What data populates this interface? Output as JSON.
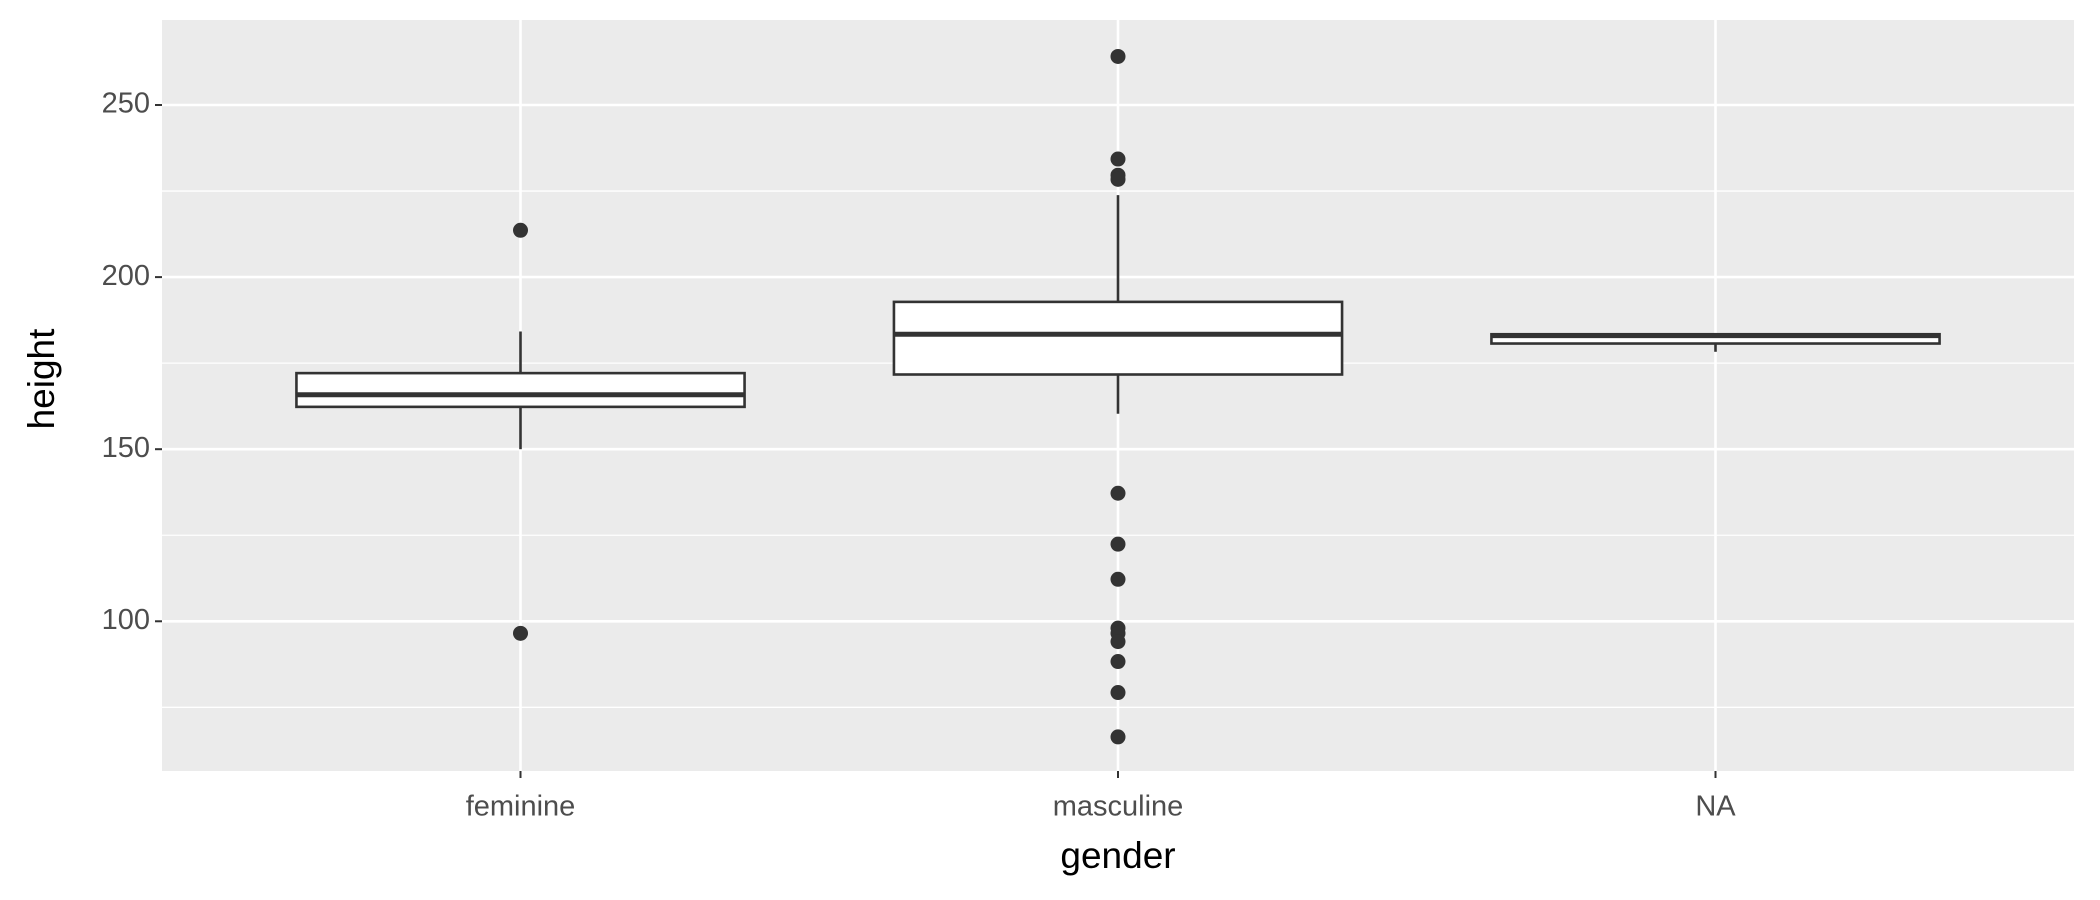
{
  "chart_data": {
    "type": "box",
    "x_label": "gender",
    "y_label": "height",
    "categories": [
      "feminine",
      "masculine",
      "NA"
    ],
    "boxes": [
      {
        "min": 150,
        "q1": 162.3,
        "median": 165.8,
        "q3": 172.1,
        "max": 184.2,
        "outliers": [
          213.6,
          96.5
        ]
      },
      {
        "min": 160.3,
        "q1": 171.7,
        "median": 183.4,
        "q3": 192.8,
        "max": 223.8,
        "outliers": [
          264.1,
          234.3,
          229.6,
          228.4,
          137.2,
          122.4,
          112.2,
          98,
          96.5,
          94.1,
          88.3,
          79.3,
          66.4
        ]
      },
      {
        "min": 178.3,
        "q1": 180.7,
        "median": 183,
        "q3": 183.4,
        "max": 183.4,
        "outliers": []
      }
    ],
    "ylim": [
      56.5,
      274.7
    ],
    "yticks": [
      100,
      150,
      200,
      250
    ],
    "minor_yticks": [
      75,
      125,
      175,
      225
    ],
    "grid": true,
    "panel_color": "#ebebeb",
    "box_fill": "#ffffff",
    "line_color": "#333333"
  }
}
